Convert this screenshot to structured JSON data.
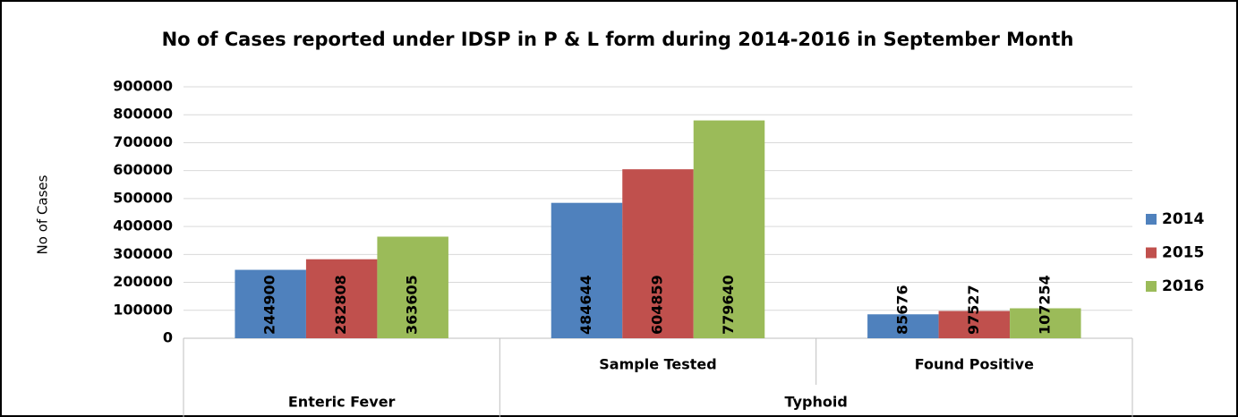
{
  "chart_data": {
    "type": "bar",
    "title": "No of Cases reported under IDSP in P & L form during 2014-2016 in September Month",
    "y_label": "No of Cases",
    "categories": [
      null,
      "Sample Tested",
      "Found Positive"
    ],
    "category_groups": [
      {
        "name": "Enteric Fever",
        "count": 1
      },
      {
        "name": "Typhoid",
        "count": 2
      }
    ],
    "series": [
      {
        "name": "2014",
        "color": "#4f81bd",
        "values": [
          244900,
          484644,
          85676
        ]
      },
      {
        "name": "2015",
        "color": "#c0504d",
        "values": [
          282808,
          604859,
          97527
        ]
      },
      {
        "name": "2016",
        "color": "#9bbb59",
        "values": [
          363605,
          779640,
          107254
        ]
      }
    ],
    "ylim": [
      0,
      900000
    ],
    "yticks": [
      0,
      100000,
      200000,
      300000,
      400000,
      500000,
      600000,
      700000,
      800000,
      900000
    ],
    "grid": true,
    "legend": "right",
    "value_labels_rotated": true
  }
}
